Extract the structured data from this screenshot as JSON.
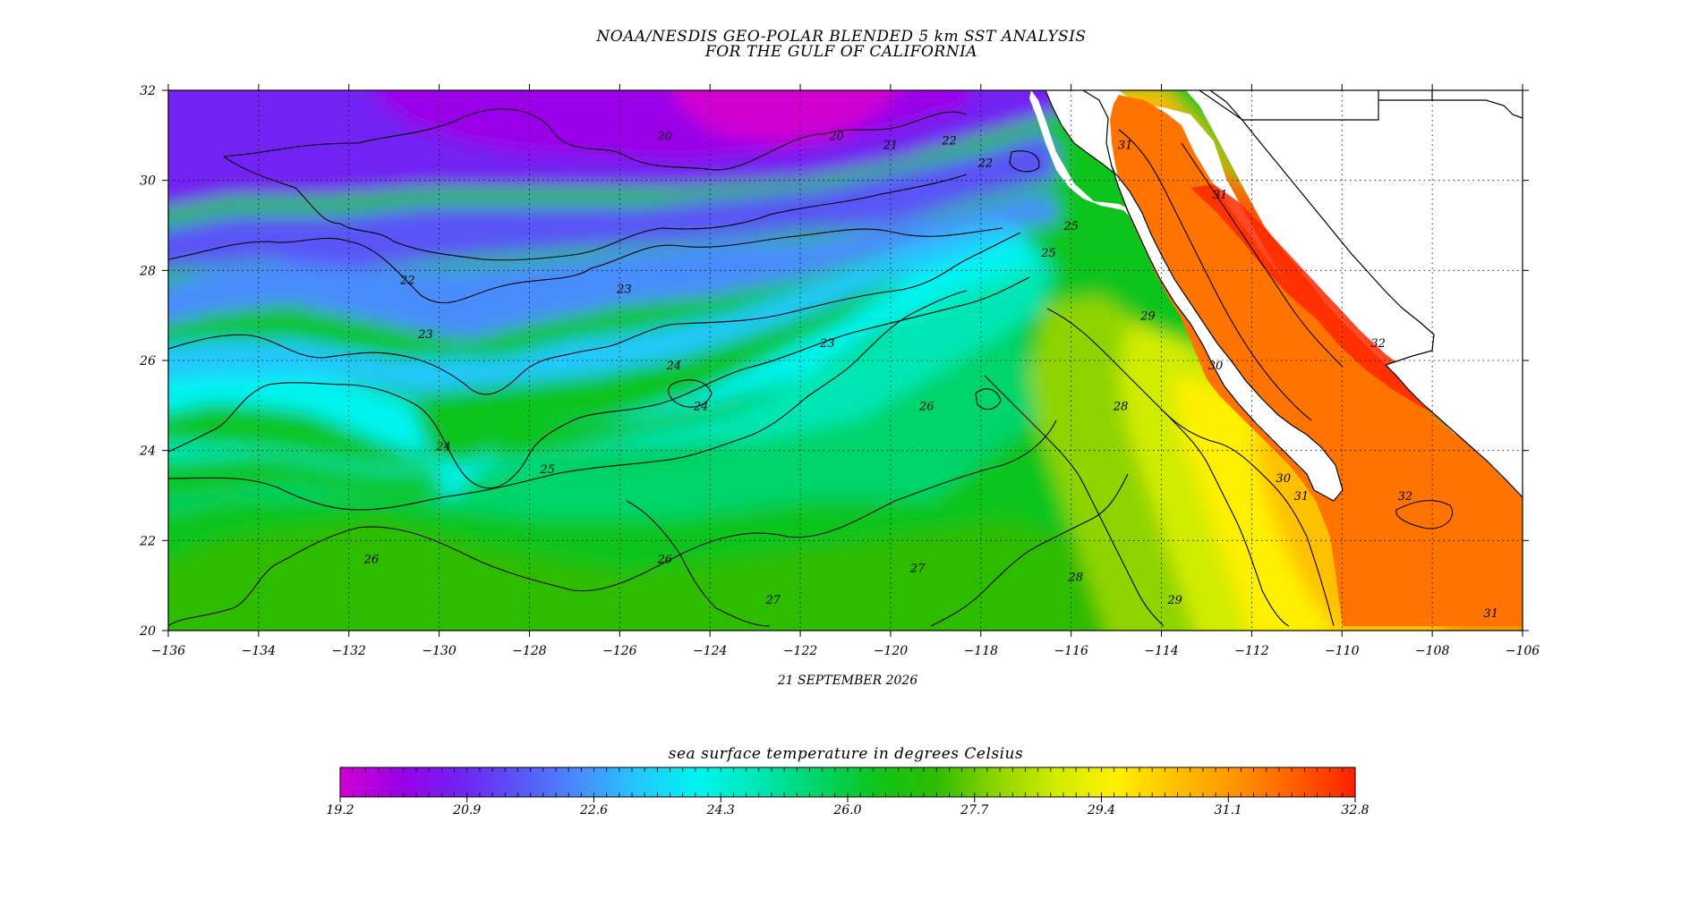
{
  "title_line1": "NOAA/NESDIS GEO-POLAR BLENDED 5 km SST ANALYSIS",
  "title_line2": "FOR THE GULF OF CALIFORNIA",
  "date_label": "21 SEPTEMBER 2026",
  "map": {
    "lon_range": [
      -136,
      -106
    ],
    "lat_range": [
      20,
      32
    ],
    "lon_ticks": [
      "−136",
      "−134",
      "−132",
      "−130",
      "−128",
      "−126",
      "−124",
      "−122",
      "−120",
      "−118",
      "−116",
      "−114",
      "−112",
      "−110",
      "−108",
      "−106"
    ],
    "lat_ticks": [
      "20",
      "22",
      "24",
      "26",
      "28",
      "30",
      "32"
    ],
    "grid": "dotted",
    "contour_labels": [
      {
        "text": "20",
        "lon": -125.0,
        "lat": 30.9
      },
      {
        "text": "20",
        "lon": -121.2,
        "lat": 30.9
      },
      {
        "text": "21",
        "lon": -120.0,
        "lat": 30.7
      },
      {
        "text": "22",
        "lon": -118.7,
        "lat": 30.8
      },
      {
        "text": "22",
        "lon": -117.9,
        "lat": 30.3
      },
      {
        "text": "22",
        "lon": -130.7,
        "lat": 27.7
      },
      {
        "text": "23",
        "lon": -125.9,
        "lat": 27.5
      },
      {
        "text": "23",
        "lon": -130.3,
        "lat": 26.5
      },
      {
        "text": "23",
        "lon": -121.4,
        "lat": 26.3
      },
      {
        "text": "24",
        "lon": -124.8,
        "lat": 25.8
      },
      {
        "text": "24",
        "lon": -124.2,
        "lat": 24.9
      },
      {
        "text": "24",
        "lon": -129.9,
        "lat": 24.0
      },
      {
        "text": "25",
        "lon": -127.6,
        "lat": 23.5
      },
      {
        "text": "25",
        "lon": -116.5,
        "lat": 28.3
      },
      {
        "text": "25",
        "lon": -116.0,
        "lat": 28.9
      },
      {
        "text": "26",
        "lon": -119.2,
        "lat": 24.9
      },
      {
        "text": "26",
        "lon": -131.5,
        "lat": 21.5
      },
      {
        "text": "26",
        "lon": -125.0,
        "lat": 21.5
      },
      {
        "text": "27",
        "lon": -119.4,
        "lat": 21.3
      },
      {
        "text": "27",
        "lon": -122.6,
        "lat": 20.6
      },
      {
        "text": "28",
        "lon": -115.9,
        "lat": 21.1
      },
      {
        "text": "28",
        "lon": -114.9,
        "lat": 24.9
      },
      {
        "text": "29",
        "lon": -114.3,
        "lat": 26.9
      },
      {
        "text": "29",
        "lon": -113.7,
        "lat": 20.6
      },
      {
        "text": "30",
        "lon": -112.8,
        "lat": 25.8
      },
      {
        "text": "30",
        "lon": -111.3,
        "lat": 23.3
      },
      {
        "text": "31",
        "lon": -114.8,
        "lat": 30.7
      },
      {
        "text": "31",
        "lon": -112.7,
        "lat": 29.6
      },
      {
        "text": "31",
        "lon": -110.9,
        "lat": 22.9
      },
      {
        "text": "32",
        "lon": -109.2,
        "lat": 26.3
      },
      {
        "text": "32",
        "lon": -108.6,
        "lat": 22.9
      },
      {
        "text": "31",
        "lon": -106.7,
        "lat": 20.3
      }
    ]
  },
  "colorbar": {
    "title": "sea surface temperature in degrees Celsius",
    "range": [
      19.2,
      32.8
    ],
    "tick_labels": [
      "19.2",
      "20.9",
      "22.6",
      "24.3",
      "26.0",
      "27.7",
      "29.4",
      "31.1",
      "32.8"
    ],
    "palette": [
      "#d000d0",
      "#9a00e8",
      "#7222f2",
      "#5a55f6",
      "#4a8cfc",
      "#22c8fc",
      "#00f4f0",
      "#00e6b4",
      "#00d46a",
      "#10c41a",
      "#2fbc00",
      "#8ed400",
      "#d2ec00",
      "#fff000",
      "#ffc000",
      "#ff9400",
      "#ff5e00",
      "#ff2000"
    ]
  }
}
